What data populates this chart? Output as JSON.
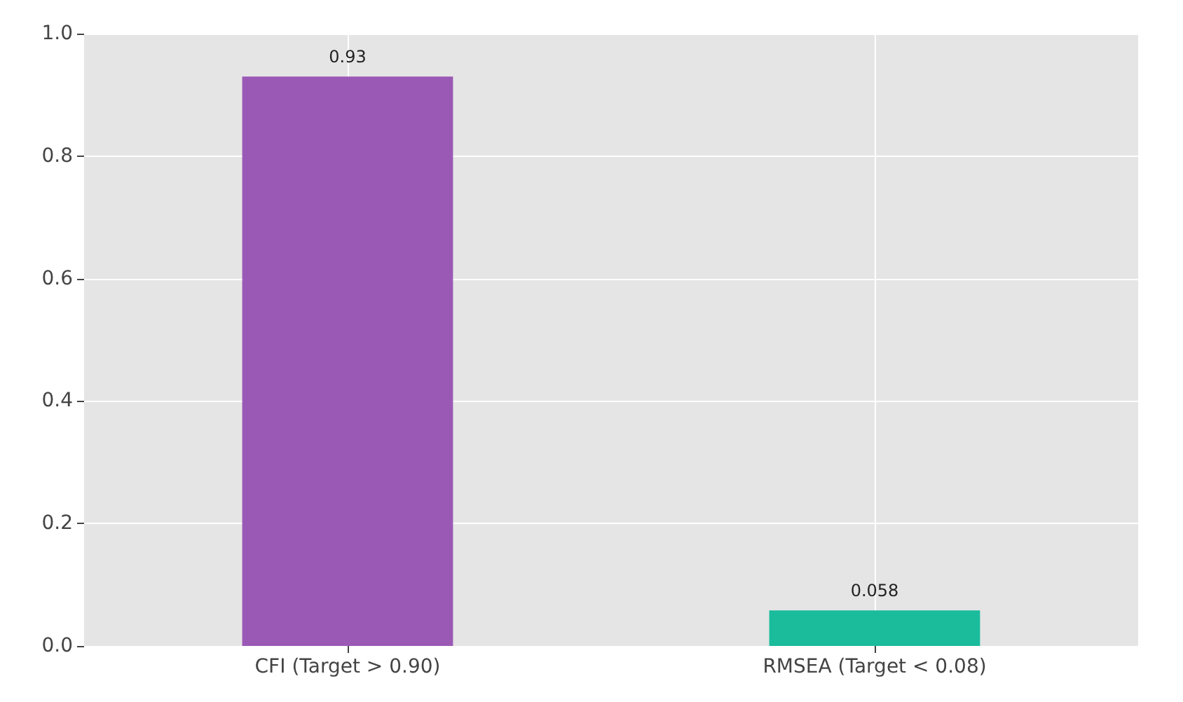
{
  "chart_data": {
    "type": "bar",
    "categories": [
      "CFI (Target > 0.90)",
      "RMSEA (Target < 0.08)"
    ],
    "values": [
      0.93,
      0.058
    ],
    "colors": [
      "#9b59b6",
      "#1abc9c"
    ],
    "ylim": [
      0,
      1
    ],
    "yticks": [
      {
        "value": 0,
        "label": "0.0"
      },
      0.2,
      0.4,
      0.6,
      0.8,
      {
        "value": 1,
        "label": "1.0"
      }
    ],
    "grid": true,
    "data_labels": true
  }
}
